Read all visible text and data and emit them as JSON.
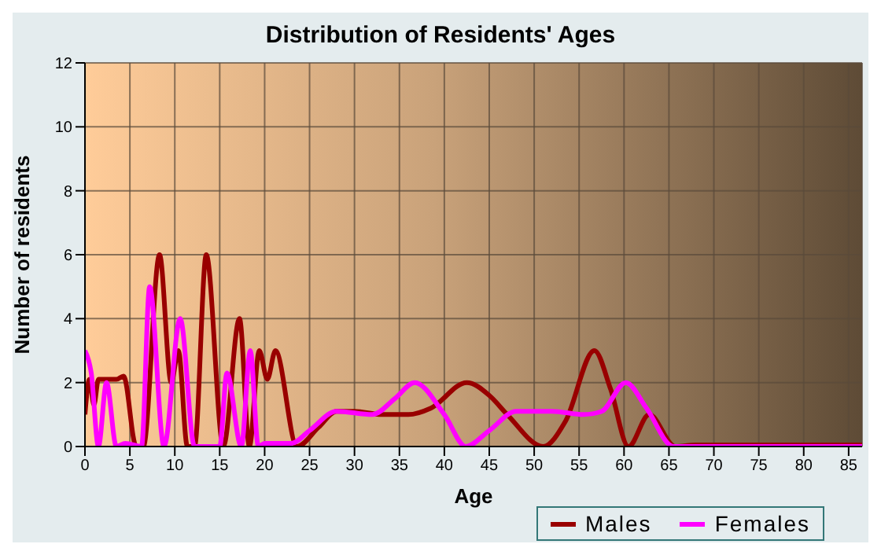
{
  "chart_data": {
    "type": "line",
    "title": "Distribution of Residents' Ages",
    "xlabel": "Age",
    "ylabel": "Number of residents",
    "xlim": [
      0,
      86.5
    ],
    "xticks": [
      0,
      5,
      10,
      15,
      20,
      25,
      30,
      35,
      40,
      45,
      50,
      55,
      60,
      65,
      70,
      75,
      80,
      85
    ],
    "ylim": [
      0,
      12
    ],
    "yticks": [
      0,
      2,
      4,
      6,
      8,
      10,
      12
    ],
    "grid": true,
    "legend": "bottom",
    "marker": "none",
    "line_style": "solid",
    "series": [
      {
        "name": "Males",
        "color": "#990000",
        "x": [
          0,
          0.5,
          1,
          1.5,
          2.5,
          3.5,
          4.3,
          5.7,
          6.5,
          8.3,
          9.6,
          10.4,
          11.4,
          12.2,
          13.5,
          15.4,
          17.2,
          18.3,
          19.4,
          20.3,
          21.2,
          23.6,
          26,
          28,
          30,
          33,
          36,
          38.5,
          42.5,
          45,
          47,
          51,
          53.5,
          56.7,
          58.5,
          60.5,
          62.8,
          65.7,
          68,
          75,
          86.5
        ],
        "values": [
          1,
          2.1,
          1.3,
          2.1,
          2.1,
          2.1,
          2.2,
          0,
          0,
          6,
          2,
          3,
          0,
          0,
          6,
          0,
          4,
          0,
          3,
          2.1,
          3,
          0,
          0.6,
          1.1,
          1.1,
          1,
          1,
          1.2,
          2,
          1.6,
          1,
          0,
          0.8,
          3,
          1.8,
          0,
          1,
          0,
          0.05,
          0.05,
          0.05
        ]
      },
      {
        "name": "Females",
        "color": "#ff00ff",
        "x": [
          0,
          0.7,
          1.5,
          2.4,
          3.5,
          4.5,
          6.3,
          7.2,
          8.8,
          10.6,
          12.2,
          15,
          15.8,
          17.4,
          18.4,
          19.3,
          20,
          23,
          25,
          28,
          32,
          34.5,
          36.7,
          40,
          42.4,
          45,
          48,
          52,
          55.5,
          57.5,
          60.2,
          62.5,
          65.5,
          70,
          86.5
        ],
        "values": [
          3,
          2.3,
          0,
          2,
          0,
          0.1,
          0,
          5,
          0,
          4,
          0,
          0,
          2.3,
          0,
          3,
          0,
          0.1,
          0.1,
          0.5,
          1.1,
          1,
          1.5,
          2,
          1,
          0,
          0.5,
          1.1,
          1.1,
          1,
          1.1,
          2,
          1.2,
          0,
          0,
          0
        ]
      }
    ]
  }
}
